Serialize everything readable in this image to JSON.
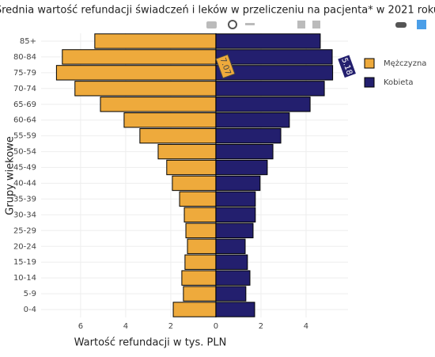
{
  "chart_data": {
    "type": "pyramid",
    "title": "Średnia wartość refundacji świadczeń i leków w przeliczeniu na pacjenta* w 2021 roku",
    "x_label": "Wartość refundacji w tys. PLN",
    "y_label": "Grupy wiekowe",
    "categories": [
      "0-4",
      "5-9",
      "10-14",
      "15-19",
      "20-24",
      "25-29",
      "30-34",
      "35-39",
      "40-44",
      "45-49",
      "50-54",
      "55-59",
      "60-64",
      "65-69",
      "70-74",
      "75-79",
      "80-84",
      "85+"
    ],
    "series": [
      {
        "name": "Mężczyzna",
        "color": "#eeaa3c",
        "values": [
          -1.89,
          -1.44,
          -1.51,
          -1.37,
          -1.26,
          -1.33,
          -1.4,
          -1.61,
          -1.93,
          -2.18,
          -2.56,
          -3.37,
          -4.07,
          -5.12,
          -6.25,
          -7.07,
          -6.81,
          -5.37
        ]
      },
      {
        "name": "Kobieta",
        "color": "#231f6e",
        "values": [
          1.72,
          1.33,
          1.51,
          1.4,
          1.3,
          1.65,
          1.75,
          1.75,
          1.96,
          2.28,
          2.53,
          2.88,
          3.26,
          4.18,
          4.81,
          5.18,
          5.16,
          4.63
        ]
      }
    ],
    "xlim": [
      -7.75,
      5.86
    ],
    "xticks": [
      {
        "value": -6,
        "label": "6"
      },
      {
        "value": -4,
        "label": "4"
      },
      {
        "value": -2,
        "label": "2"
      },
      0,
      2,
      4
    ],
    "grid": true,
    "annotations": [
      {
        "text": "7.07",
        "category": "75-79",
        "series": "Mężczyzna"
      },
      {
        "text": "5.18",
        "category": "75-79",
        "series": "Kobieta"
      }
    ]
  }
}
